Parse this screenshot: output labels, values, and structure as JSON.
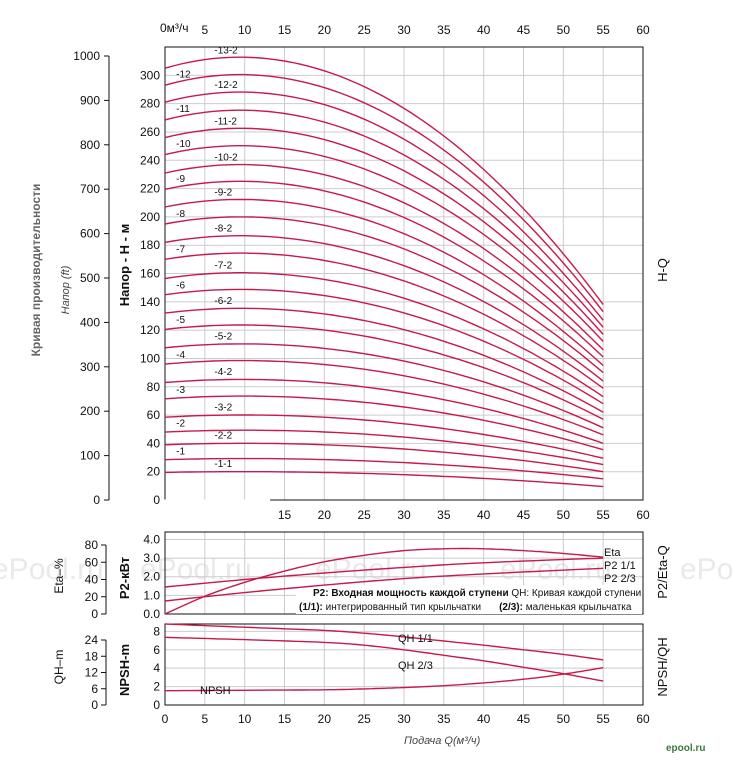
{
  "chart_data": [
    {
      "type": "line",
      "panel": "H-Q",
      "panel_label": "H-Q",
      "ylabel": "Напор - H - м",
      "ylabel_ft": "Напор (ft)",
      "yaxis_group_title": "Кривая производительности",
      "x_unit_label": "0м³/ч",
      "x_top_ticks": [
        "5",
        "10",
        "15",
        "20",
        "25",
        "30",
        "35",
        "40",
        "45",
        "50",
        "55",
        "60"
      ],
      "x_bottom_ticks": [
        "15",
        "20",
        "25",
        "30",
        "35",
        "40",
        "45",
        "50",
        "55",
        "60"
      ],
      "y_ticks_m": [
        "0",
        "20",
        "40",
        "60",
        "80",
        "100",
        "120",
        "140",
        "160",
        "180",
        "200",
        "220",
        "240",
        "260",
        "280",
        "300"
      ],
      "y_ticks_ft": [
        "0",
        "100",
        "200",
        "300",
        "400",
        "500",
        "600",
        "700",
        "800",
        "900",
        "1000"
      ],
      "xlim": [
        0,
        60
      ],
      "ylim_m": [
        0,
        320
      ],
      "ylim_ft": [
        0,
        1050
      ],
      "x_end": 55,
      "series": [
        {
          "name": "-1-1",
          "h0": 19.5,
          "h55": 9.5
        },
        {
          "name": "-1",
          "h0": 28.5,
          "h55": 15
        },
        {
          "name": "-2-2",
          "h0": 39,
          "h55": 20
        },
        {
          "name": "-2",
          "h0": 48,
          "h55": 25
        },
        {
          "name": "-3-2",
          "h0": 58.5,
          "h55": 29.5
        },
        {
          "name": "-3",
          "h0": 71.5,
          "h55": 35.5
        },
        {
          "name": "-4-2",
          "h0": 83,
          "h55": 40
        },
        {
          "name": "-4",
          "h0": 96,
          "h55": 46
        },
        {
          "name": "-5-2",
          "h0": 107.5,
          "h55": 51
        },
        {
          "name": "-5",
          "h0": 120.5,
          "h55": 57
        },
        {
          "name": "-6-2",
          "h0": 132,
          "h55": 62
        },
        {
          "name": "-6",
          "h0": 145,
          "h55": 68
        },
        {
          "name": "-7-2",
          "h0": 156.5,
          "h55": 73
        },
        {
          "name": "-7",
          "h0": 170,
          "h55": 79
        },
        {
          "name": "-8-2",
          "h0": 182,
          "h55": 84
        },
        {
          "name": "-8",
          "h0": 195,
          "h55": 90
        },
        {
          "name": "-9-2",
          "h0": 207,
          "h55": 95
        },
        {
          "name": "-9",
          "h0": 219.5,
          "h55": 101
        },
        {
          "name": "-10-2",
          "h0": 231,
          "h55": 106
        },
        {
          "name": "-10",
          "h0": 244,
          "h55": 112
        },
        {
          "name": "-11-2",
          "h0": 256,
          "h55": 117
        },
        {
          "name": "-11",
          "h0": 268.5,
          "h55": 122
        },
        {
          "name": "-12-2",
          "h0": 281,
          "h55": 127
        },
        {
          "name": "-12",
          "h0": 293,
          "h55": 133
        },
        {
          "name": "-13-2",
          "h0": 305,
          "h55": 138
        }
      ]
    },
    {
      "type": "line",
      "panel": "P2/Eta-Q",
      "panel_label": "P2/Eta-Q",
      "ylabel_left": "Eta–%",
      "ylabel_right": "P2-кВт",
      "y_ticks_eta": [
        "0",
        "20",
        "40",
        "60",
        "80"
      ],
      "y_ticks_p2": [
        "0.0",
        "1.0",
        "2.0",
        "3.0",
        "4.0"
      ],
      "x_ticks": [
        "15",
        "20",
        "25",
        "30",
        "35",
        "40",
        "45",
        "50",
        "55",
        "60"
      ],
      "ylim_p2": [
        0,
        4.4
      ],
      "legend_lines": [
        {
          "bold": "P2: Входная мощность каждой ступени",
          "text": " QH: Кривая каждой ступени"
        },
        {
          "bold": "(1/1):",
          "text": " интегрированный тип крыльчатки",
          "bold2": "(2/3):",
          "text2": " маленькая крыльчатка"
        }
      ],
      "series": [
        {
          "name": "Eta",
          "x": [
            0,
            5,
            10,
            15,
            20,
            25,
            30,
            35,
            40,
            45,
            50,
            55
          ],
          "y": [
            0.0,
            0.95,
            1.7,
            2.3,
            2.8,
            3.15,
            3.4,
            3.5,
            3.5,
            3.4,
            3.25,
            3.05
          ]
        },
        {
          "name": "P2 1/1",
          "x": [
            0,
            10,
            20,
            30,
            40,
            55
          ],
          "y": [
            1.45,
            1.85,
            2.2,
            2.5,
            2.75,
            3.0
          ]
        },
        {
          "name": "P2 2/3",
          "x": [
            0,
            10,
            20,
            30,
            40,
            55
          ],
          "y": [
            0.7,
            1.15,
            1.55,
            1.9,
            2.15,
            2.45
          ]
        }
      ]
    },
    {
      "type": "line",
      "panel": "NPSH/QH",
      "panel_label": "NPSH/QH",
      "ylabel_left": "QH–m",
      "ylabel_right": "NPSH-m",
      "y_ticks_qh": [
        "0",
        "6",
        "12",
        "18",
        "24"
      ],
      "y_ticks_npsh": [
        "0",
        "2",
        "4",
        "6",
        "8"
      ],
      "x_ticks": [
        "0",
        "5",
        "10",
        "15",
        "20",
        "25",
        "30",
        "35",
        "40",
        "45",
        "50",
        "55",
        "60"
      ],
      "xlabel": "Подача Q(м³/ч)",
      "ylim_npsh": [
        0,
        8.8
      ],
      "series": [
        {
          "name": "QH 1/1",
          "x": [
            0,
            10,
            20,
            25,
            30,
            35,
            40,
            45,
            50,
            55
          ],
          "y": [
            8.8,
            8.45,
            8.1,
            7.8,
            7.4,
            6.95,
            6.5,
            6.0,
            5.5,
            4.9
          ]
        },
        {
          "name": "QH 2/3",
          "x": [
            0,
            10,
            20,
            25,
            30,
            35,
            40,
            45,
            50,
            55
          ],
          "y": [
            7.35,
            7.1,
            6.8,
            6.5,
            6.0,
            5.4,
            4.8,
            4.1,
            3.4,
            2.6
          ]
        },
        {
          "name": "NPSH",
          "x": [
            0,
            10,
            20,
            25,
            30,
            35,
            40,
            45,
            50,
            55
          ],
          "y": [
            1.55,
            1.6,
            1.65,
            1.75,
            1.9,
            2.1,
            2.4,
            2.8,
            3.35,
            4.05
          ]
        }
      ]
    }
  ],
  "watermark": [
    "ePool.ru",
    "ePool.ru",
    "ePool.ru",
    "ePool.ru",
    "ePool.ru"
  ],
  "logo_text": "epool.ru",
  "colors": {
    "curve": "#c8194b",
    "grid": "#cccccc",
    "axis": "#111111"
  }
}
